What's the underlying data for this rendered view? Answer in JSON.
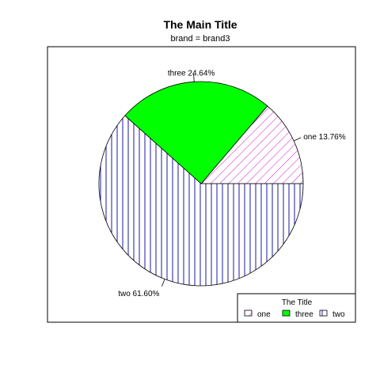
{
  "chart_data": {
    "type": "pie",
    "title": "The Main Title",
    "subtitle": "brand = brand3",
    "slices": [
      {
        "name": "one",
        "value": 13.76,
        "label": "one 13.76%",
        "fill": "pattern",
        "color": "#cc00cc"
      },
      {
        "name": "three",
        "value": 24.64,
        "label": "three 24.64%",
        "fill": "solid",
        "color": "#00ff00"
      },
      {
        "name": "two",
        "value": 61.6,
        "label": "two 61.60%",
        "fill": "pattern",
        "color": "#000099"
      }
    ],
    "legend": {
      "title": "The Title",
      "position": "bottom-right",
      "entries": [
        "one",
        "three",
        "two"
      ]
    }
  }
}
